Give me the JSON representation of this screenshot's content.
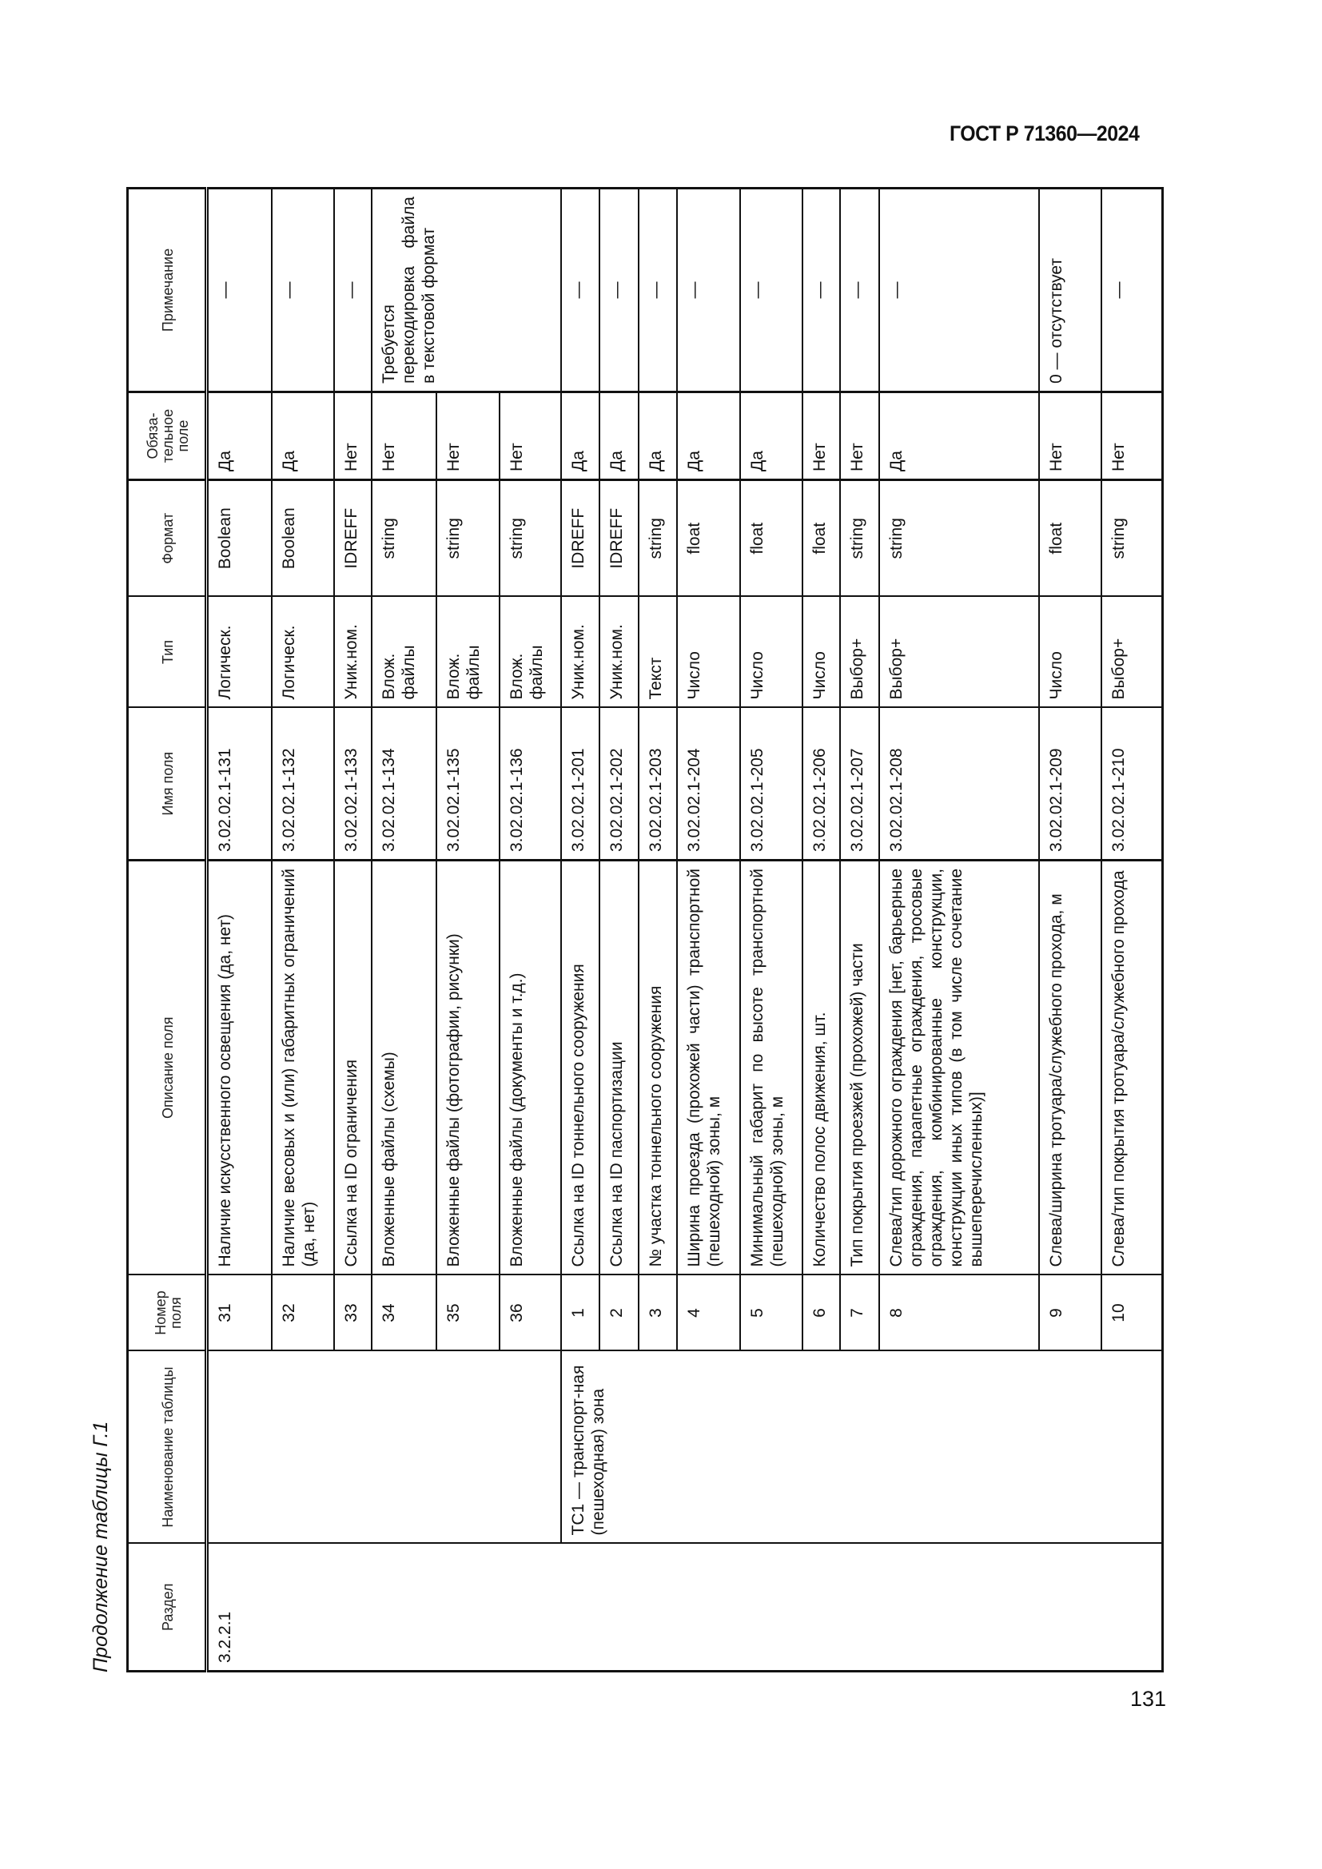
{
  "header": {
    "doc_id": "ГОСТ Р 71360—2024"
  },
  "caption": "Продолжение таблицы Г.1",
  "footer": {
    "page_number": "131"
  },
  "table": {
    "columns": [
      "Раздел",
      "Наименование таблицы",
      "Номер поля",
      "Описание поля",
      "Имя поля",
      "Тип",
      "Формат",
      "Обяза-тельное поле",
      "Примечание"
    ],
    "section": "3.2.2.1",
    "groups": [
      {
        "table_name": "",
        "rows": 6
      },
      {
        "table_name": "ТС1 — транспорт-ная (пешеходная) зона",
        "rows": 10
      }
    ],
    "rows": [
      {
        "num": "31",
        "desc": "Наличие искусственного освещения (да, нет)",
        "name": "3.02.02.1-131",
        "type": "Логическ.",
        "format": "Boolean",
        "required": "Да",
        "note": "—"
      },
      {
        "num": "32",
        "desc": "Наличие весовых и (или) габаритных ограничений (да, нет)",
        "name": "3.02.02.1-132",
        "type": "Логическ.",
        "format": "Boolean",
        "required": "Да",
        "note": "—"
      },
      {
        "num": "33",
        "desc": "Ссылка на ID ограничения",
        "name": "3.02.02.1-133",
        "type": "Уник.ном.",
        "format": "IDREFF",
        "required": "Нет",
        "note": "—"
      },
      {
        "num": "34",
        "desc": "Вложенные файлы (схемы)",
        "name": "3.02.02.1-134",
        "type": "Влож. файлы",
        "format": "string",
        "required": "Нет",
        "note": "Требуется перекодировка файла в текстовой формат",
        "note_rowspan": 3
      },
      {
        "num": "35",
        "desc": "Вложенные файлы (фотографии, рисунки)",
        "name": "3.02.02.1-135",
        "type": "Влож. файлы",
        "format": "string",
        "required": "Нет"
      },
      {
        "num": "36",
        "desc": "Вложенные файлы (документы и т.д.)",
        "name": "3.02.02.1-136",
        "type": "Влож. файлы",
        "format": "string",
        "required": "Нет"
      },
      {
        "num": "1",
        "desc": "Ссылка на ID тоннельного сооружения",
        "name": "3.02.02.1-201",
        "type": "Уник.ном.",
        "format": "IDREFF",
        "required": "Да",
        "note": "—"
      },
      {
        "num": "2",
        "desc": "Ссылка на ID паспортизации",
        "name": "3.02.02.1-202",
        "type": "Уник.ном.",
        "format": "IDREFF",
        "required": "Да",
        "note": "—"
      },
      {
        "num": "3",
        "desc": "№ участка тоннельного сооружения",
        "name": "3.02.02.1-203",
        "type": "Текст",
        "format": "string",
        "required": "Да",
        "note": "—"
      },
      {
        "num": "4",
        "desc": "Ширина проезда (прохожей части) транспортной (пешеходной) зоны, м",
        "name": "3.02.02.1-204",
        "type": "Число",
        "format": "float",
        "required": "Да",
        "note": "—"
      },
      {
        "num": "5",
        "desc": "Минимальный габарит по высоте транспортной (пешеходной) зоны, м",
        "name": "3.02.02.1-205",
        "type": "Число",
        "format": "float",
        "required": "Да",
        "note": "—"
      },
      {
        "num": "6",
        "desc": "Количество полос движения, шт.",
        "name": "3.02.02.1-206",
        "type": "Число",
        "format": "float",
        "required": "Нет",
        "note": "—"
      },
      {
        "num": "7",
        "desc": "Тип покрытия проезжей (прохожей) части",
        "name": "3.02.02.1-207",
        "type": "Выбор+",
        "format": "string",
        "required": "Нет",
        "note": "—"
      },
      {
        "num": "8",
        "desc": "Слева/тип дорожного ограждения [нет, барьерные ограждения, парапетные ограждения, тросовые ограждения, комбинированные конструкции, конструкции иных типов (в том числе сочетание вышеперечисленных)]",
        "name": "3.02.02.1-208",
        "type": "Выбор+",
        "format": "string",
        "required": "Да",
        "note": "—"
      },
      {
        "num": "9",
        "desc": "Слева/ширина тротуара/служебного прохода, м",
        "name": "3.02.02.1-209",
        "type": "Число",
        "format": "float",
        "required": "Нет",
        "note": "0 — отсутствует"
      },
      {
        "num": "10",
        "desc": "Слева/тип покрытия тротуара/служебного прохода",
        "name": "3.02.02.1-210",
        "type": "Выбор+",
        "format": "string",
        "required": "Нет",
        "note": "—"
      }
    ]
  }
}
